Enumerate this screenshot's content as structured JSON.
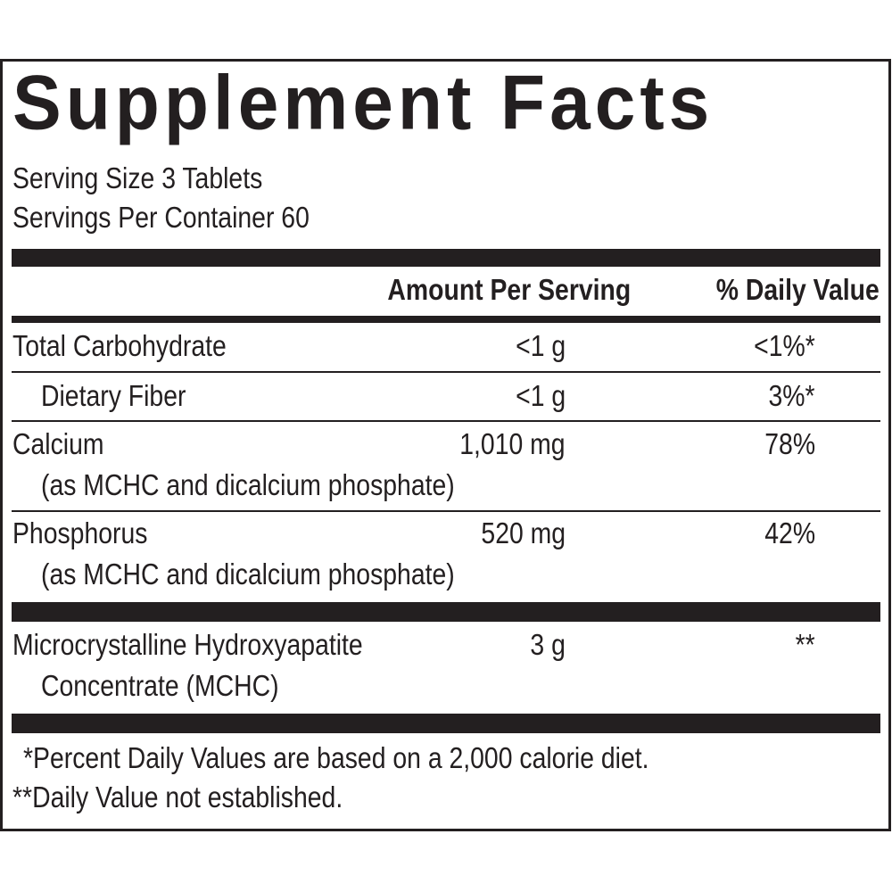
{
  "title": "Supplement Facts",
  "serving": {
    "size": "Serving Size 3 Tablets",
    "per_container": "Servings Per Container 60"
  },
  "header": {
    "amount": "Amount Per Serving",
    "dv": "% Daily Value"
  },
  "rows": [
    {
      "name": "Total Carbohydrate",
      "sub": "",
      "amount": "<1 g",
      "dv": "<1%*"
    },
    {
      "name": "Dietary Fiber",
      "sub": "",
      "amount": "<1 g",
      "dv": "3%*"
    },
    {
      "name": "Calcium",
      "sub": "(as MCHC and dicalcium phosphate)",
      "amount": "1,010 mg",
      "dv": "78%"
    },
    {
      "name": "Phosphorus",
      "sub": "(as MCHC and dicalcium phosphate)",
      "amount": "520 mg",
      "dv": "42%"
    }
  ],
  "other": {
    "name": "Microcrystalline Hydroxyapatite",
    "sub": "Concentrate (MCHC)",
    "amount": "3 g",
    "dv": "**"
  },
  "footnotes": {
    "percent": "*Percent Daily Values are based on a 2,000 calorie diet.",
    "not_established": "**Daily Value not established."
  }
}
